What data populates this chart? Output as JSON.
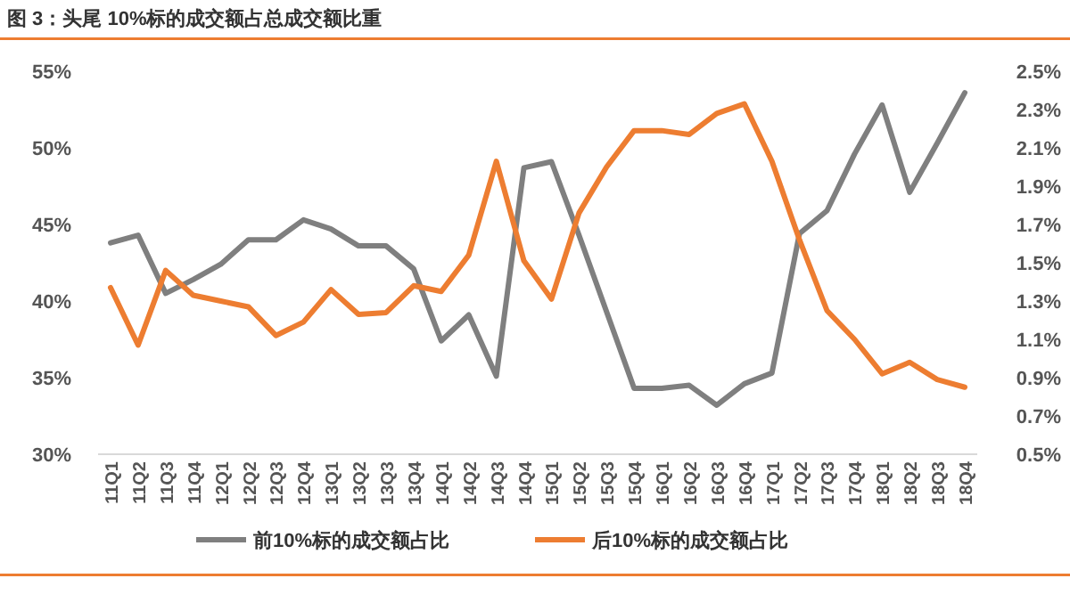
{
  "chart_data": {
    "type": "line",
    "title": "图 3：头尾 10%标的成交额占总成交额比重",
    "categories": [
      "11Q1",
      "11Q2",
      "11Q3",
      "11Q4",
      "12Q1",
      "12Q2",
      "12Q3",
      "12Q4",
      "13Q1",
      "13Q2",
      "13Q3",
      "13Q4",
      "14Q1",
      "14Q2",
      "14Q3",
      "14Q4",
      "15Q1",
      "15Q2",
      "15Q3",
      "15Q4",
      "16Q1",
      "16Q2",
      "16Q3",
      "16Q4",
      "17Q1",
      "17Q2",
      "17Q3",
      "17Q4",
      "18Q1",
      "18Q2",
      "18Q3",
      "18Q4"
    ],
    "series": [
      {
        "name": "前10%标的成交额占比",
        "color": "#7f7f7f",
        "values": [
          43.8,
          44.3,
          40.5,
          41.4,
          42.4,
          44.0,
          44.0,
          45.3,
          44.7,
          43.6,
          43.6,
          42.1,
          37.4,
          39.1,
          35.1,
          48.7,
          49.1,
          44.3,
          39.3,
          34.3,
          34.3,
          34.5,
          33.2,
          34.6,
          35.3,
          44.4,
          45.9,
          49.6,
          52.8,
          47.1,
          50.3,
          53.6
        ]
      },
      {
        "name": "后10%标的成交额占比",
        "color": "#ed7d31",
        "axis": "y2",
        "values": [
          1.37,
          1.07,
          1.46,
          1.33,
          1.3,
          1.27,
          1.12,
          1.19,
          1.36,
          1.23,
          1.24,
          1.38,
          1.35,
          1.54,
          2.03,
          1.51,
          1.31,
          1.76,
          2.0,
          2.19,
          2.19,
          2.17,
          2.28,
          2.33,
          2.03,
          1.62,
          1.25,
          1.1,
          0.92,
          0.98,
          0.89,
          0.85
        ]
      }
    ],
    "ylim": [
      30,
      55
    ],
    "yticks": [
      {
        "value": 30,
        "label": "30%"
      },
      {
        "value": 35,
        "label": "35%"
      },
      {
        "value": 40,
        "label": "40%"
      },
      {
        "value": 45,
        "label": "45%"
      },
      {
        "value": 50,
        "label": "50%"
      },
      {
        "value": 55,
        "label": "55%"
      }
    ],
    "y2lim": [
      0.5,
      2.5
    ],
    "y2ticks": [
      {
        "value": 0.5,
        "label": "0.5%"
      },
      {
        "value": 0.7,
        "label": "0.7%"
      },
      {
        "value": 0.9,
        "label": "0.9%"
      },
      {
        "value": 1.1,
        "label": "1.1%"
      },
      {
        "value": 1.3,
        "label": "1.3%"
      },
      {
        "value": 1.5,
        "label": "1.5%"
      },
      {
        "value": 1.7,
        "label": "1.7%"
      },
      {
        "value": 1.9,
        "label": "1.9%"
      },
      {
        "value": 2.1,
        "label": "2.1%"
      },
      {
        "value": 2.3,
        "label": "2.3%"
      },
      {
        "value": 2.5,
        "label": "2.5%"
      }
    ],
    "grid": false,
    "legend": "bottom",
    "marker": "none",
    "line_style": "solid"
  }
}
